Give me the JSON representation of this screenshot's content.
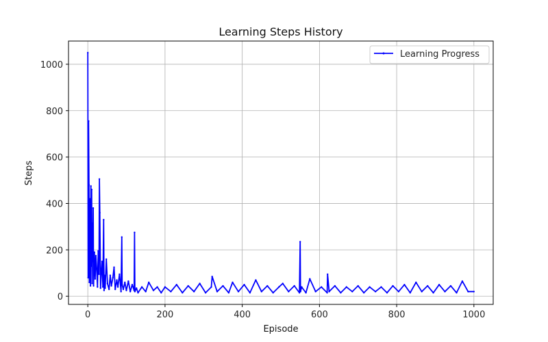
{
  "chart_data": {
    "type": "line",
    "title": "Learning Steps History",
    "xlabel": "Episode",
    "ylabel": "Steps",
    "xlim": [
      -50,
      1050
    ],
    "ylim": [
      -35,
      1100
    ],
    "xticks": [
      0,
      200,
      400,
      600,
      800,
      1000
    ],
    "yticks": [
      0,
      200,
      400,
      600,
      800,
      1000
    ],
    "grid": true,
    "legend_position": "top-right",
    "series": [
      {
        "name": "Learning Progress",
        "color": "#0000ff",
        "x": [
          0,
          1,
          2,
          3,
          4,
          5,
          6,
          7,
          8,
          9,
          10,
          11,
          12,
          13,
          14,
          15,
          17,
          19,
          21,
          23,
          25,
          27,
          29,
          30,
          31,
          33,
          35,
          37,
          39,
          41,
          42,
          43,
          45,
          48,
          51,
          55,
          58,
          61,
          65,
          68,
          71,
          75,
          78,
          82,
          86,
          88,
          89,
          92,
          96,
          100,
          105,
          110,
          115,
          120,
          121,
          122,
          126,
          130,
          140,
          150,
          158,
          170,
          180,
          190,
          200,
          215,
          230,
          245,
          260,
          275,
          290,
          305,
          320,
          322,
          335,
          350,
          365,
          375,
          390,
          405,
          420,
          435,
          450,
          465,
          480,
          495,
          505,
          520,
          535,
          548,
          550,
          551,
          554,
          565,
          575,
          590,
          605,
          620,
          621,
          625,
          640,
          655,
          670,
          685,
          700,
          715,
          730,
          745,
          760,
          775,
          790,
          805,
          820,
          835,
          850,
          865,
          880,
          895,
          910,
          925,
          940,
          955,
          970,
          985,
          1000
        ],
        "y": [
          1050,
          80,
          755,
          480,
          60,
          410,
          420,
          45,
          475,
          130,
          460,
          55,
          315,
          150,
          380,
          45,
          190,
          75,
          175,
          120,
          40,
          195,
          95,
          505,
          360,
          35,
          100,
          150,
          40,
          330,
          25,
          90,
          35,
          160,
          55,
          30,
          90,
          45,
          80,
          125,
          30,
          70,
          40,
          95,
          20,
          255,
          50,
          30,
          60,
          25,
          65,
          20,
          50,
          25,
          275,
          20,
          35,
          15,
          40,
          20,
          60,
          25,
          40,
          15,
          40,
          20,
          50,
          15,
          45,
          20,
          55,
          15,
          40,
          85,
          20,
          45,
          15,
          60,
          20,
          50,
          15,
          70,
          20,
          45,
          15,
          40,
          55,
          20,
          45,
          15,
          235,
          20,
          40,
          15,
          75,
          20,
          40,
          15,
          95,
          20,
          45,
          15,
          40,
          20,
          45,
          15,
          40,
          20,
          40,
          15,
          45,
          20,
          50,
          15,
          60,
          20,
          45,
          15,
          50,
          20,
          45,
          15,
          65,
          20,
          20
        ]
      }
    ]
  }
}
